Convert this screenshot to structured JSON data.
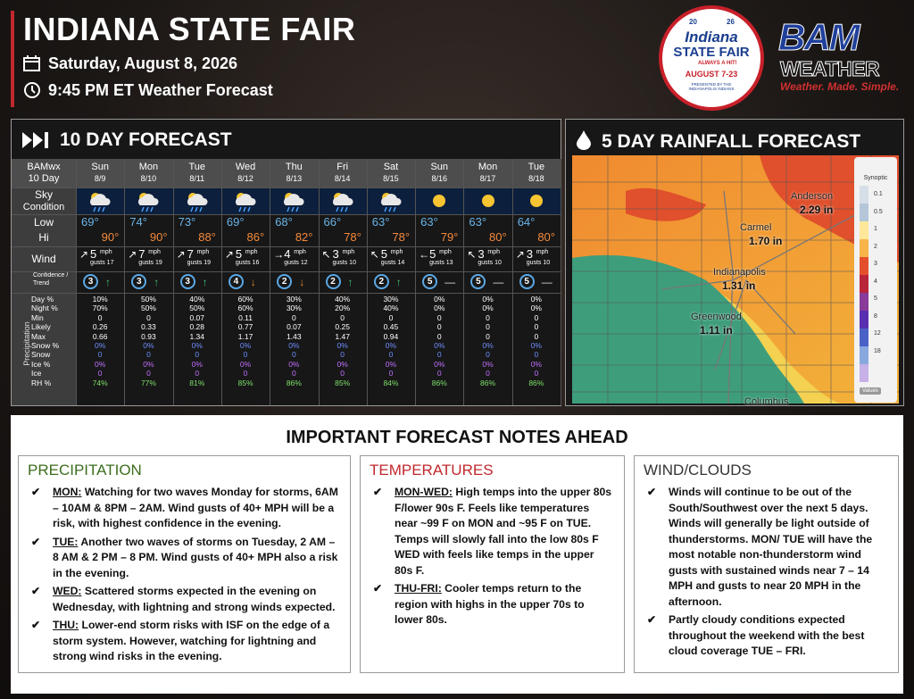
{
  "header": {
    "title": "INDIANA STATE FAIR",
    "date": "Saturday, August 8, 2026",
    "time": "9:45 PM ET Weather Forecast"
  },
  "fair_logo": {
    "year_top": "20",
    "year_right": "26",
    "name1": "Indiana",
    "name2": "STATE FAIR",
    "tagline": "ALWAYS A HIT!",
    "dates": "AUGUST 7-23",
    "sponsor": "PRESENTED BY THE INDIANAPOLIS INDIANS"
  },
  "bam_logo": {
    "name": "BAM",
    "word": "WEATHER",
    "slogan": "Weather. Made. Simple."
  },
  "forecast": {
    "title": "10 DAY FORECAST",
    "corner": [
      "BAMwx",
      "10 Day"
    ],
    "row_labels": {
      "sky": [
        "Sky",
        "Condition"
      ],
      "lohi": [
        "Low",
        "Hi"
      ],
      "wind": "Wind",
      "conf": [
        "Confidence /",
        "Trend"
      ],
      "side": "Precipitation",
      "mph": "mph"
    },
    "precip_labels": [
      "Day %",
      "Night %",
      "Min",
      "Likely",
      "Max",
      "Snow %",
      "Snow",
      "Ice %",
      "Ice",
      "RH %"
    ],
    "days": [
      {
        "day": "Sun",
        "date": "8/9",
        "low": "69°",
        "hi": "90°",
        "dir": "↗",
        "wind": "5",
        "gusts": "gusts 17",
        "conf": "3",
        "trend": "↑",
        "precip": [
          "10%",
          "70%",
          "0",
          "0.26",
          "0.66",
          "0%",
          "0",
          "0%",
          "0",
          "74%"
        ]
      },
      {
        "day": "Mon",
        "date": "8/10",
        "low": "74°",
        "hi": "90°",
        "dir": "↗",
        "wind": "7",
        "gusts": "gusts 19",
        "conf": "3",
        "trend": "↑",
        "precip": [
          "50%",
          "50%",
          "0",
          "0.33",
          "0.93",
          "0%",
          "0",
          "0%",
          "0",
          "77%"
        ]
      },
      {
        "day": "Tue",
        "date": "8/11",
        "low": "73°",
        "hi": "88°",
        "dir": "↗",
        "wind": "7",
        "gusts": "gusts 19",
        "conf": "3",
        "trend": "↑",
        "precip": [
          "40%",
          "50%",
          "0.07",
          "0.28",
          "1.34",
          "0%",
          "0",
          "0%",
          "0",
          "81%"
        ]
      },
      {
        "day": "Wed",
        "date": "8/12",
        "low": "69°",
        "hi": "86°",
        "dir": "↗",
        "wind": "5",
        "gusts": "gusts 16",
        "conf": "4",
        "trend": "↓",
        "precip": [
          "60%",
          "60%",
          "0.11",
          "0.77",
          "1.17",
          "0%",
          "0",
          "0%",
          "0",
          "85%"
        ]
      },
      {
        "day": "Thu",
        "date": "8/13",
        "low": "68°",
        "hi": "82°",
        "dir": "→",
        "wind": "4",
        "gusts": "gusts 12",
        "conf": "2",
        "trend": "↓",
        "precip": [
          "30%",
          "30%",
          "0",
          "0.07",
          "1.43",
          "0%",
          "0",
          "0%",
          "0",
          "86%"
        ]
      },
      {
        "day": "Fri",
        "date": "8/14",
        "low": "66°",
        "hi": "78°",
        "dir": "↖",
        "wind": "3",
        "gusts": "gusts 10",
        "conf": "2",
        "trend": "↑",
        "precip": [
          "40%",
          "20%",
          "0",
          "0.25",
          "1.47",
          "0%",
          "0",
          "0%",
          "0",
          "85%"
        ]
      },
      {
        "day": "Sat",
        "date": "8/15",
        "low": "63°",
        "hi": "78°",
        "dir": "↖",
        "wind": "5",
        "gusts": "gusts 14",
        "conf": "2",
        "trend": "↑",
        "precip": [
          "30%",
          "40%",
          "0",
          "0.45",
          "0.94",
          "0%",
          "0",
          "0%",
          "0",
          "84%"
        ]
      },
      {
        "day": "Sun",
        "date": "8/16",
        "low": "63°",
        "hi": "79°",
        "dir": "←",
        "wind": "5",
        "gusts": "gusts 13",
        "conf": "5",
        "trend": "—",
        "precip": [
          "0%",
          "0%",
          "0",
          "0",
          "0",
          "0%",
          "0",
          "0%",
          "0",
          "86%"
        ]
      },
      {
        "day": "Mon",
        "date": "8/17",
        "low": "63°",
        "hi": "80°",
        "dir": "↖",
        "wind": "3",
        "gusts": "gusts 10",
        "conf": "5",
        "trend": "—",
        "precip": [
          "0%",
          "0%",
          "0",
          "0",
          "0",
          "0%",
          "0",
          "0%",
          "0",
          "86%"
        ]
      },
      {
        "day": "Tue",
        "date": "8/18",
        "low": "64°",
        "hi": "80°",
        "dir": "↗",
        "wind": "3",
        "gusts": "gusts 10",
        "conf": "5",
        "trend": "—",
        "precip": [
          "0%",
          "0%",
          "0",
          "0",
          "0",
          "0%",
          "0",
          "0%",
          "0",
          "86%"
        ]
      }
    ]
  },
  "rainfall": {
    "title": "5 DAY RAINFALL FORECAST",
    "places": [
      {
        "name": "Anderson",
        "amount": "2.29 in"
      },
      {
        "name": "Carmel",
        "amount": "1.70 in"
      },
      {
        "name": "Indianapolis",
        "amount": "1.31 in"
      },
      {
        "name": "Greenwood",
        "amount": "1.11 in"
      },
      {
        "name": "Columbus"
      }
    ],
    "legend": {
      "title": "Synoptic",
      "ticks": [
        "0.1",
        "0.5",
        "1",
        "2",
        "3",
        "4",
        "5",
        "8",
        "12",
        "18"
      ],
      "button": "Values"
    }
  },
  "notes": {
    "title": "IMPORTANT FORECAST NOTES AHEAD",
    "columns": [
      {
        "heading": "PRECIPITATION",
        "items": [
          {
            "lead": "MON:",
            "text": " Watching for two waves Monday for storms, 6AM – 10AM & 8PM – 2AM. Wind gusts of 40+ MPH will be a risk, with highest confidence in the evening."
          },
          {
            "lead": "TUE:",
            "text": " Another two waves of storms on Tuesday, 2 AM – 8 AM & 2 PM – 8 PM. Wind gusts of 40+ MPH also a risk in the evening."
          },
          {
            "lead": "WED:",
            "text": " Scattered storms expected in the evening on Wednesday, with lightning and strong winds expected."
          },
          {
            "lead": "THU:",
            "text": " Lower-end storm risks with ISF on the edge of a storm system. However, watching for lightning and strong wind risks in the evening."
          }
        ]
      },
      {
        "heading": "TEMPERATURES",
        "items": [
          {
            "lead": "MON-WED:",
            "text": " High temps into the upper 80s F/lower 90s F. Feels like temperatures near ~99 F on MON and ~95 F on TUE. Temps will slowly fall into the low 80s F WED with feels like temps in the upper 80s F."
          },
          {
            "lead": "THU-FRI:",
            "text": " Cooler temps return to the region with highs in the upper 70s to lower 80s."
          }
        ]
      },
      {
        "heading": "WIND/CLOUDS",
        "items": [
          {
            "text": "Winds will continue to be out of the South/Southwest over the next 5 days. Winds will generally be light outside of thunderstorms.  MON/ TUE will have the most notable non-thunderstorm wind gusts with sustained winds near 7 – 14 MPH and gusts to near 20 MPH in the afternoon."
          },
          {
            "text": "Partly cloudy conditions expected throughout the weekend with the best cloud coverage TUE – FRI."
          }
        ]
      }
    ]
  }
}
